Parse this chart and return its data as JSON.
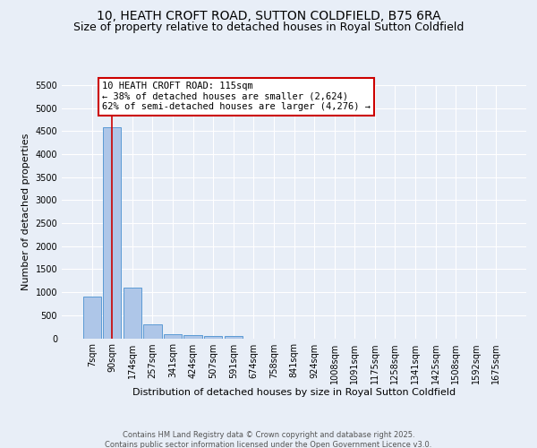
{
  "title": "10, HEATH CROFT ROAD, SUTTON COLDFIELD, B75 6RA",
  "subtitle": "Size of property relative to detached houses in Royal Sutton Coldfield",
  "xlabel": "Distribution of detached houses by size in Royal Sutton Coldfield",
  "ylabel": "Number of detached properties",
  "bar_labels": [
    "7sqm",
    "90sqm",
    "174sqm",
    "257sqm",
    "341sqm",
    "424sqm",
    "507sqm",
    "591sqm",
    "674sqm",
    "758sqm",
    "841sqm",
    "924sqm",
    "1008sqm",
    "1091sqm",
    "1175sqm",
    "1258sqm",
    "1341sqm",
    "1425sqm",
    "1508sqm",
    "1592sqm",
    "1675sqm"
  ],
  "bar_values": [
    900,
    4580,
    1100,
    300,
    90,
    70,
    55,
    45,
    0,
    0,
    0,
    0,
    0,
    0,
    0,
    0,
    0,
    0,
    0,
    0,
    0
  ],
  "bar_color": "#aec6e8",
  "bar_edge_color": "#5b9bd5",
  "vline_x": 1.0,
  "vline_color": "#cc0000",
  "annotation_text": "10 HEATH CROFT ROAD: 115sqm\n← 38% of detached houses are smaller (2,624)\n62% of semi-detached houses are larger (4,276) →",
  "annotation_box_color": "#ffffff",
  "annotation_box_edge_color": "#cc0000",
  "ylim": [
    0,
    5500
  ],
  "yticks": [
    0,
    500,
    1000,
    1500,
    2000,
    2500,
    3000,
    3500,
    4000,
    4500,
    5000,
    5500
  ],
  "bg_color": "#e8eef7",
  "plot_bg_color": "#e8eef7",
  "footer_line1": "Contains HM Land Registry data © Crown copyright and database right 2025.",
  "footer_line2": "Contains public sector information licensed under the Open Government Licence v3.0.",
  "title_fontsize": 10,
  "subtitle_fontsize": 9,
  "axis_label_fontsize": 8,
  "tick_fontsize": 7,
  "annotation_fontsize": 7.5,
  "footer_fontsize": 6,
  "ylabel_fontsize": 8
}
